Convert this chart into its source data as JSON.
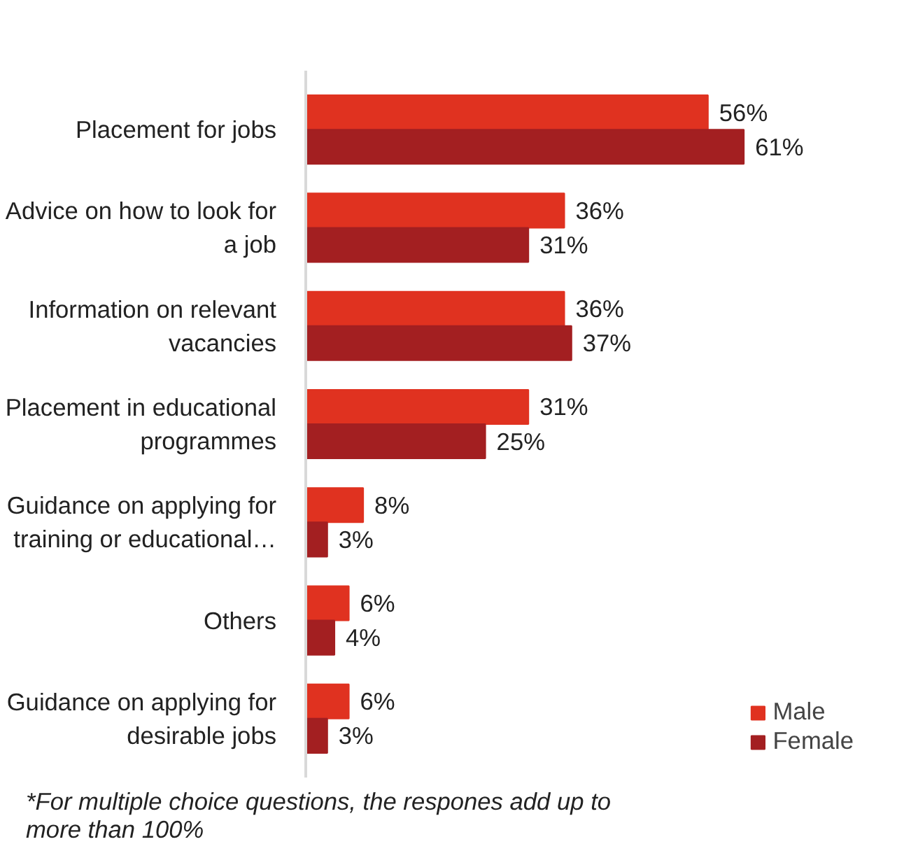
{
  "chart_data": {
    "type": "bar",
    "orientation": "horizontal",
    "categories": [
      "Placement for jobs",
      "Advice on how to look for a job",
      "Information on relevant vacancies",
      "Placement in educational programmes",
      "Guidance on applying for training or educational…",
      "Others",
      "Guidance on applying for desirable jobs"
    ],
    "series": [
      {
        "name": "Male",
        "color": "#e03220",
        "values": [
          56,
          36,
          36,
          31,
          8,
          6,
          6
        ],
        "value_labels": [
          "56%",
          "36%",
          "36%",
          "31%",
          "8%",
          "6%",
          "6%"
        ]
      },
      {
        "name": "Female",
        "color": "#a31f21",
        "values": [
          61,
          31,
          37,
          25,
          3,
          4,
          3
        ],
        "value_labels": [
          "61%",
          "31%",
          "37%",
          "25%",
          "3%",
          "4%",
          "3%"
        ]
      }
    ],
    "legend": "bottom right",
    "grid": false,
    "annotations": [
      "*For multiple choice questions, the respones add up to more than 100%"
    ]
  }
}
